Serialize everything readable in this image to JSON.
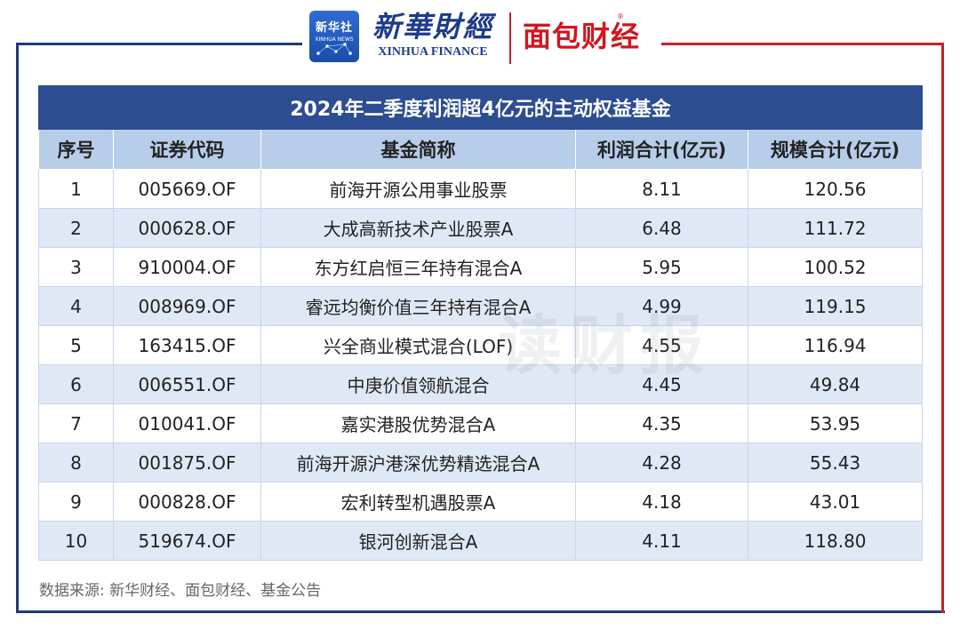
{
  "header": {
    "badge_cn": "新华社",
    "badge_en": "XINHUA NEWS",
    "xinhua_finance_cn": "新華財經",
    "xinhua_finance_en": "XINHUA FINANCE",
    "mianbao_cn": "面包财经",
    "mianbao_reg": "®",
    "colors": {
      "blue": "#1d3b8a",
      "red": "#d1161e"
    }
  },
  "table": {
    "title": "2024年二季度利润超4亿元的主动权益基金",
    "columns": [
      "序号",
      "证券代码",
      "基金简称",
      "利润合计(亿元)",
      "规模合计(亿元)"
    ],
    "rows": [
      [
        "1",
        "005669.OF",
        "前海开源公用事业股票",
        "8.11",
        "120.56"
      ],
      [
        "2",
        "000628.OF",
        "大成高新技术产业股票A",
        "6.48",
        "111.72"
      ],
      [
        "3",
        "910004.OF",
        "东方红启恒三年持有混合A",
        "5.95",
        "100.52"
      ],
      [
        "4",
        "008969.OF",
        "睿远均衡价值三年持有混合A",
        "4.99",
        "119.15"
      ],
      [
        "5",
        "163415.OF",
        "兴全商业模式混合(LOF)",
        "4.55",
        "116.94"
      ],
      [
        "6",
        "006551.OF",
        "中庚价值领航混合",
        "4.45",
        "49.84"
      ],
      [
        "7",
        "010041.OF",
        "嘉实港股优势混合A",
        "4.35",
        "53.95"
      ],
      [
        "8",
        "001875.OF",
        "前海开源沪港深优势精选混合A",
        "4.28",
        "55.43"
      ],
      [
        "9",
        "000828.OF",
        "宏利转型机遇股票A",
        "4.18",
        "43.01"
      ],
      [
        "10",
        "519674.OF",
        "银河创新混合A",
        "4.11",
        "118.80"
      ]
    ]
  },
  "watermark": "读财报",
  "source": "数据来源: 新华财经、面包财经、基金公告"
}
